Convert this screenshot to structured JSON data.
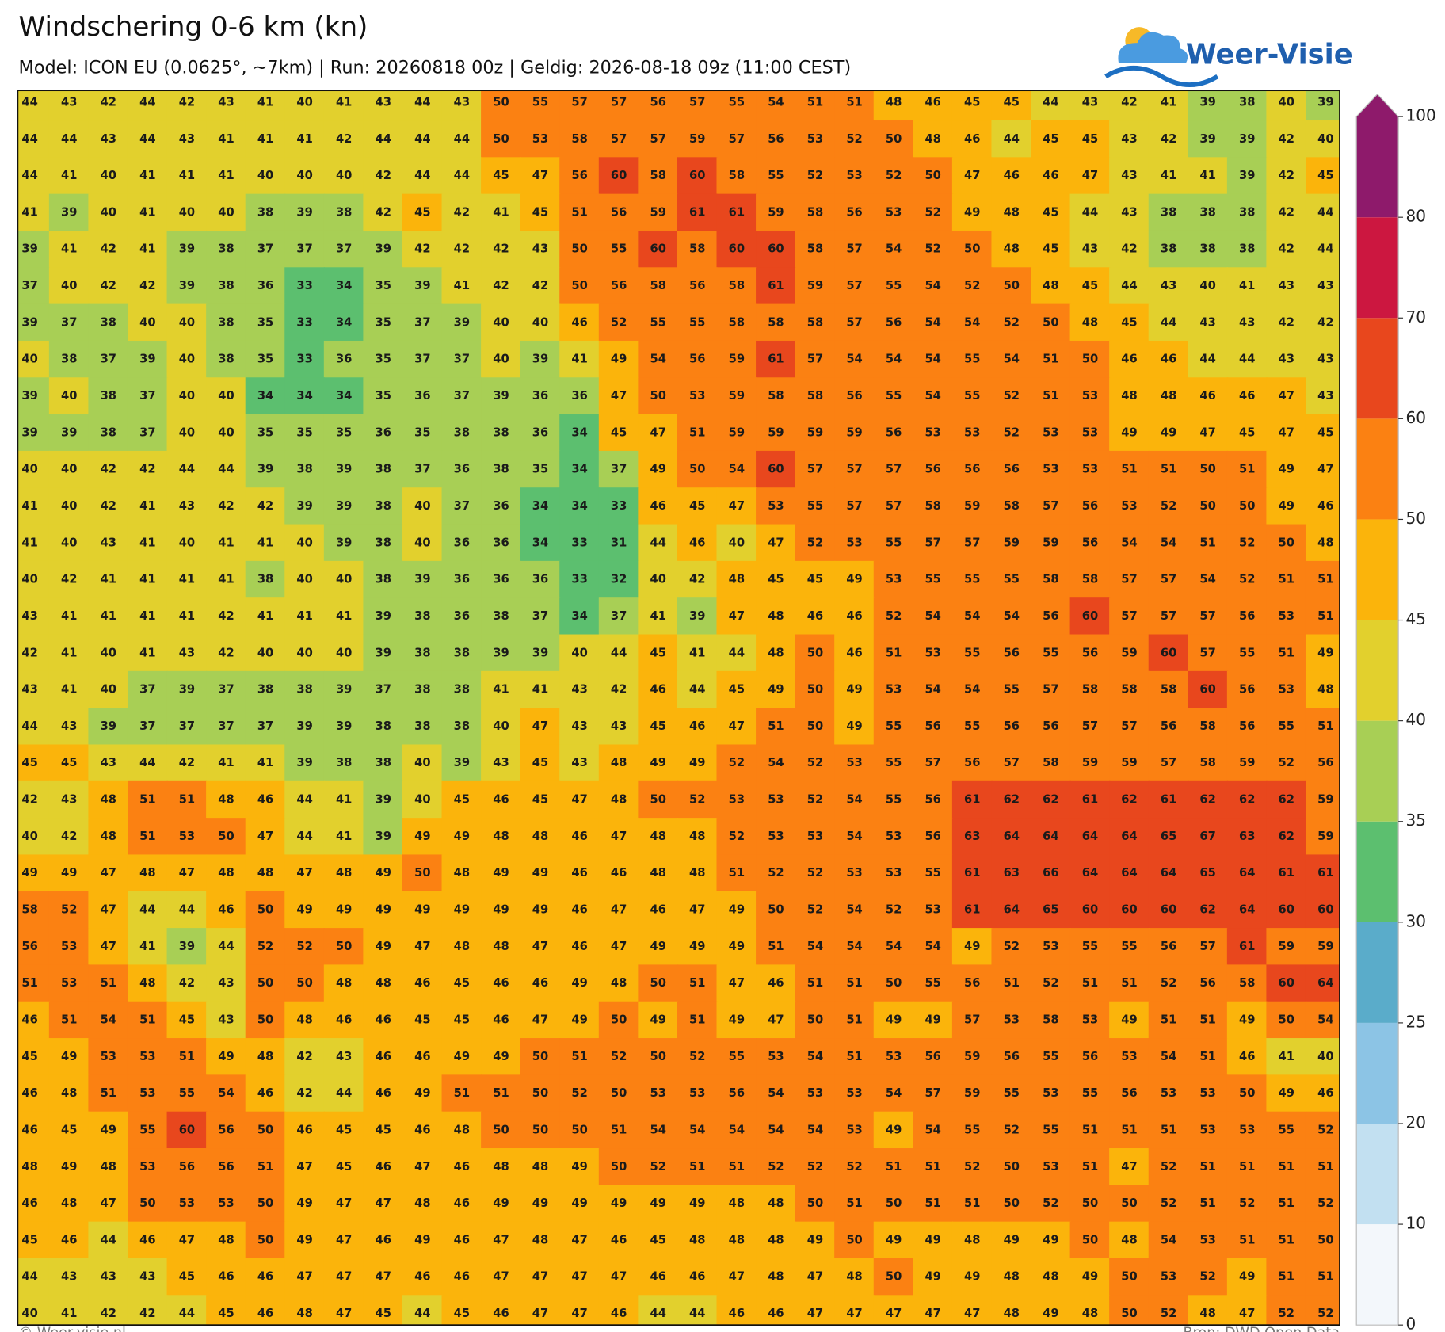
{
  "header": {
    "title": "Windschering 0-6 km (kn)",
    "subtitle": "Model: ICON EU (0.0625°, ~7km)  |  Run: 20260818 00z  |  Geldig: 2026-08-18 09z (11:00 CEST)",
    "logo": "Weer-Visie"
  },
  "map": {
    "values": [
      [
        44,
        43,
        42,
        44,
        42,
        43,
        41,
        40,
        41,
        43,
        44,
        43,
        50,
        55,
        57,
        57,
        56,
        57,
        55,
        54,
        51,
        51,
        48,
        46,
        45,
        45,
        44,
        43,
        42,
        41,
        39,
        38,
        40,
        39
      ],
      [
        44,
        44,
        43,
        44,
        43,
        41,
        41,
        41,
        42,
        44,
        44,
        44,
        50,
        53,
        58,
        57,
        57,
        59,
        57,
        56,
        53,
        52,
        50,
        48,
        46,
        44,
        45,
        45,
        43,
        42,
        39,
        39,
        42,
        40
      ],
      [
        44,
        41,
        40,
        41,
        41,
        41,
        40,
        40,
        40,
        42,
        44,
        44,
        45,
        47,
        56,
        60,
        58,
        60,
        58,
        55,
        52,
        53,
        52,
        50,
        47,
        46,
        46,
        47,
        43,
        41,
        41,
        39,
        42,
        45
      ],
      [
        41,
        39,
        40,
        41,
        40,
        40,
        38,
        39,
        38,
        42,
        45,
        42,
        41,
        45,
        51,
        56,
        59,
        61,
        61,
        59,
        58,
        56,
        53,
        52,
        49,
        48,
        45,
        44,
        43,
        38,
        38,
        38,
        42,
        44
      ],
      [
        39,
        41,
        42,
        41,
        39,
        38,
        37,
        37,
        37,
        39,
        42,
        42,
        42,
        43,
        50,
        55,
        60,
        58,
        60,
        60,
        58,
        57,
        54,
        52,
        50,
        48,
        45,
        43,
        42,
        38,
        38,
        38,
        42,
        44
      ],
      [
        37,
        40,
        42,
        42,
        39,
        38,
        36,
        33,
        34,
        35,
        39,
        41,
        42,
        42,
        50,
        56,
        58,
        56,
        58,
        61,
        59,
        57,
        55,
        54,
        52,
        50,
        48,
        45,
        44,
        43,
        40,
        41,
        43,
        43
      ],
      [
        39,
        37,
        38,
        40,
        40,
        38,
        35,
        33,
        34,
        35,
        37,
        39,
        40,
        40,
        46,
        52,
        55,
        55,
        58,
        58,
        58,
        57,
        56,
        54,
        54,
        52,
        50,
        48,
        45,
        44,
        43,
        43,
        42,
        42
      ],
      [
        40,
        38,
        37,
        39,
        40,
        38,
        35,
        33,
        36,
        35,
        37,
        37,
        40,
        39,
        41,
        49,
        54,
        56,
        59,
        61,
        57,
        54,
        54,
        54,
        55,
        54,
        51,
        50,
        46,
        46,
        44,
        44,
        43,
        43
      ],
      [
        39,
        40,
        38,
        37,
        40,
        40,
        34,
        34,
        34,
        35,
        36,
        37,
        39,
        36,
        36,
        47,
        50,
        53,
        59,
        58,
        58,
        56,
        55,
        54,
        55,
        52,
        51,
        53,
        48,
        48,
        46,
        46,
        47,
        43
      ],
      [
        39,
        39,
        38,
        37,
        40,
        40,
        35,
        35,
        35,
        36,
        35,
        38,
        38,
        36,
        34,
        45,
        47,
        51,
        59,
        59,
        59,
        59,
        56,
        53,
        53,
        52,
        53,
        53,
        49,
        49,
        47,
        45,
        47,
        45
      ],
      [
        40,
        40,
        42,
        42,
        44,
        44,
        39,
        38,
        39,
        38,
        37,
        36,
        38,
        35,
        34,
        37,
        49,
        50,
        54,
        60,
        57,
        57,
        57,
        56,
        56,
        56,
        53,
        53,
        51,
        51,
        50,
        51,
        49,
        47
      ],
      [
        41,
        40,
        42,
        41,
        43,
        42,
        42,
        39,
        39,
        38,
        40,
        37,
        36,
        34,
        34,
        33,
        46,
        45,
        47,
        53,
        55,
        57,
        57,
        58,
        59,
        58,
        57,
        56,
        53,
        52,
        50,
        50,
        49,
        46
      ],
      [
        41,
        40,
        43,
        41,
        40,
        41,
        41,
        40,
        39,
        38,
        40,
        36,
        36,
        34,
        33,
        31,
        44,
        46,
        40,
        47,
        52,
        53,
        55,
        57,
        57,
        59,
        59,
        56,
        54,
        54,
        51,
        52,
        50,
        48
      ],
      [
        40,
        42,
        41,
        41,
        41,
        41,
        38,
        40,
        40,
        38,
        39,
        36,
        36,
        36,
        33,
        32,
        40,
        42,
        48,
        45,
        45,
        49,
        53,
        55,
        55,
        55,
        58,
        58,
        57,
        57,
        54,
        52,
        51,
        51
      ],
      [
        43,
        41,
        41,
        41,
        41,
        42,
        41,
        41,
        41,
        39,
        38,
        36,
        38,
        37,
        34,
        37,
        41,
        39,
        47,
        48,
        46,
        46,
        52,
        54,
        54,
        54,
        56,
        60,
        57,
        57,
        57,
        56,
        53,
        51
      ],
      [
        42,
        41,
        40,
        41,
        43,
        42,
        40,
        40,
        40,
        39,
        38,
        38,
        39,
        39,
        40,
        44,
        45,
        41,
        44,
        48,
        50,
        46,
        51,
        53,
        55,
        56,
        55,
        56,
        59,
        60,
        57,
        55,
        51,
        49
      ],
      [
        43,
        41,
        40,
        37,
        39,
        37,
        38,
        38,
        39,
        37,
        38,
        38,
        41,
        41,
        43,
        42,
        46,
        44,
        45,
        49,
        50,
        49,
        53,
        54,
        54,
        55,
        57,
        58,
        58,
        58,
        60,
        56,
        53,
        48
      ],
      [
        44,
        43,
        39,
        37,
        37,
        37,
        37,
        39,
        39,
        38,
        38,
        38,
        40,
        47,
        43,
        43,
        45,
        46,
        47,
        51,
        50,
        49,
        55,
        56,
        55,
        56,
        56,
        57,
        57,
        56,
        58,
        56,
        55,
        51
      ],
      [
        45,
        45,
        43,
        44,
        42,
        41,
        41,
        39,
        38,
        38,
        40,
        39,
        43,
        45,
        43,
        48,
        49,
        49,
        52,
        54,
        52,
        53,
        55,
        57,
        56,
        57,
        58,
        59,
        59,
        57,
        58,
        59,
        52,
        56
      ],
      [
        42,
        43,
        48,
        51,
        51,
        48,
        46,
        44,
        41,
        39,
        40,
        45,
        46,
        45,
        47,
        48,
        50,
        52,
        53,
        53,
        52,
        54,
        55,
        56,
        61,
        62,
        62,
        61,
        62,
        61,
        62,
        62,
        62,
        59
      ],
      [
        40,
        42,
        48,
        51,
        53,
        50,
        47,
        44,
        41,
        39,
        49,
        49,
        48,
        48,
        46,
        47,
        48,
        48,
        52,
        53,
        53,
        54,
        53,
        56,
        63,
        64,
        64,
        64,
        64,
        65,
        67,
        63,
        62,
        59
      ],
      [
        49,
        49,
        47,
        48,
        47,
        48,
        48,
        47,
        48,
        49,
        50,
        48,
        49,
        49,
        46,
        46,
        48,
        48,
        51,
        52,
        52,
        53,
        53,
        55,
        61,
        63,
        66,
        64,
        64,
        64,
        65,
        64,
        61,
        61
      ],
      [
        58,
        52,
        47,
        44,
        44,
        46,
        50,
        49,
        49,
        49,
        49,
        49,
        49,
        49,
        46,
        47,
        46,
        47,
        49,
        50,
        52,
        54,
        52,
        53,
        61,
        64,
        65,
        60,
        60,
        60,
        62,
        64,
        60,
        60
      ],
      [
        56,
        53,
        47,
        41,
        39,
        44,
        52,
        52,
        50,
        49,
        47,
        48,
        48,
        47,
        46,
        47,
        49,
        49,
        49,
        51,
        54,
        54,
        54,
        54,
        49,
        52,
        53,
        55,
        55,
        56,
        57,
        61,
        59,
        59
      ],
      [
        51,
        53,
        51,
        48,
        42,
        43,
        50,
        50,
        48,
        48,
        46,
        45,
        46,
        46,
        49,
        48,
        50,
        51,
        47,
        46,
        51,
        51,
        50,
        55,
        56,
        51,
        52,
        51,
        51,
        52,
        56,
        58,
        60,
        64
      ],
      [
        46,
        51,
        54,
        51,
        45,
        43,
        50,
        48,
        46,
        46,
        45,
        45,
        46,
        47,
        49,
        50,
        49,
        51,
        49,
        47,
        50,
        51,
        49,
        49,
        57,
        53,
        58,
        53,
        49,
        51,
        51,
        49,
        50,
        54
      ],
      [
        45,
        49,
        53,
        53,
        51,
        49,
        48,
        42,
        43,
        46,
        46,
        49,
        49,
        50,
        51,
        52,
        50,
        52,
        55,
        53,
        54,
        51,
        53,
        56,
        59,
        56,
        55,
        56,
        53,
        54,
        51,
        46,
        41,
        40
      ],
      [
        46,
        48,
        51,
        53,
        55,
        54,
        46,
        42,
        44,
        46,
        49,
        51,
        51,
        50,
        52,
        50,
        53,
        53,
        56,
        54,
        53,
        53,
        54,
        57,
        59,
        55,
        53,
        55,
        56,
        53,
        53,
        50,
        49,
        46
      ],
      [
        46,
        45,
        49,
        55,
        60,
        56,
        50,
        46,
        45,
        45,
        46,
        48,
        50,
        50,
        50,
        51,
        54,
        54,
        54,
        54,
        54,
        53,
        49,
        54,
        55,
        52,
        55,
        51,
        51,
        51,
        53,
        53,
        55,
        52
      ],
      [
        48,
        49,
        48,
        53,
        56,
        56,
        51,
        47,
        45,
        46,
        47,
        46,
        48,
        48,
        49,
        50,
        52,
        51,
        51,
        52,
        52,
        52,
        51,
        51,
        52,
        50,
        53,
        51,
        47,
        52,
        51,
        51,
        51,
        51
      ],
      [
        46,
        48,
        47,
        50,
        53,
        53,
        50,
        49,
        47,
        47,
        48,
        46,
        49,
        49,
        49,
        49,
        49,
        49,
        48,
        48,
        50,
        51,
        50,
        51,
        51,
        50,
        52,
        50,
        50,
        52,
        51,
        52,
        51,
        52
      ],
      [
        45,
        46,
        44,
        46,
        47,
        48,
        50,
        49,
        47,
        46,
        49,
        46,
        47,
        48,
        47,
        46,
        45,
        48,
        48,
        48,
        49,
        50,
        49,
        49,
        48,
        49,
        49,
        50,
        48,
        54,
        53,
        51,
        51,
        50
      ],
      [
        44,
        43,
        43,
        43,
        45,
        46,
        46,
        47,
        47,
        47,
        46,
        46,
        47,
        47,
        47,
        47,
        46,
        46,
        47,
        48,
        47,
        48,
        50,
        49,
        49,
        48,
        48,
        49,
        50,
        53,
        52,
        49,
        51,
        51
      ],
      [
        40,
        41,
        42,
        42,
        44,
        45,
        46,
        48,
        47,
        45,
        44,
        45,
        46,
        47,
        47,
        46,
        44,
        44,
        46,
        46,
        47,
        47,
        47,
        47,
        47,
        48,
        49,
        48,
        50,
        52,
        48,
        47,
        52,
        52
      ]
    ]
  },
  "colorbar": {
    "ticks": [
      0,
      10,
      20,
      25,
      30,
      35,
      40,
      45,
      50,
      60,
      70,
      80,
      100
    ],
    "colors": [
      "#f3f7fb",
      "#c2e0f1",
      "#8cc4e5",
      "#5aacca",
      "#5cbf6f",
      "#a8cf55",
      "#e2d02d",
      "#fbb40b",
      "#fb8112",
      "#e8471d",
      "#cc1740",
      "#8e1a6b"
    ]
  },
  "footer": {
    "left": "© Weer-visie.nl",
    "right": "Bron: DWD Open Data"
  }
}
